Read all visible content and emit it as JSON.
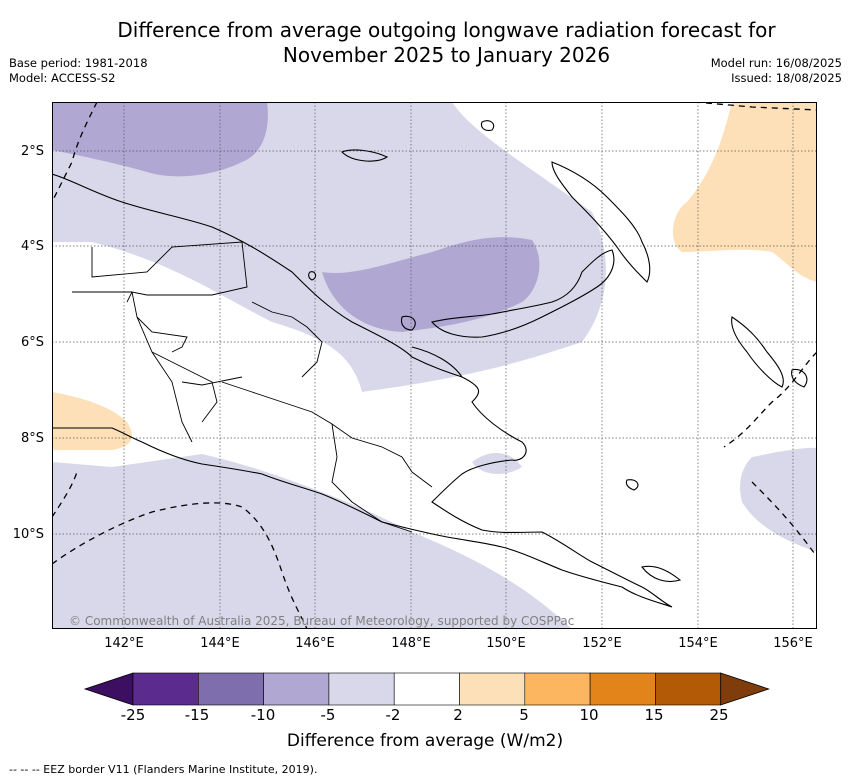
{
  "title": {
    "line1": "Difference from average outgoing longwave radiation forecast for",
    "line2": "November 2025 to January 2026"
  },
  "meta_left": {
    "base_period": "Base period: 1981-2018",
    "model": "Model: ACCESS-S2"
  },
  "meta_right": {
    "model_run": "Model run: 16/08/2025",
    "issued": "Issued: 18/08/2025"
  },
  "map": {
    "latitude_labels": [
      "2°S",
      "4°S",
      "6°S",
      "8°S",
      "10°S"
    ],
    "longitude_labels": [
      "142°E",
      "144°E",
      "146°E",
      "148°E",
      "150°E",
      "152°E",
      "154°E",
      "156°E"
    ],
    "copyright": "© Commonwealth of Australia 2025, Bureau of Meteorology, supported by COSPPac",
    "colors": {
      "anom_-10_-5": "#b0a8d2",
      "anom_-5_-2": "#d8d8ea",
      "anom_2_5": "#fde0b7",
      "land_outline": "#000000",
      "grid": "#555555"
    }
  },
  "colorbar": {
    "ticks": [
      "-25",
      "-15",
      "-10",
      "-5",
      "-2",
      "2",
      "5",
      "10",
      "15",
      "25"
    ],
    "colors": [
      "#3d0f60",
      "#5c2b8e",
      "#7f6ead",
      "#b0a8d2",
      "#d8d8ea",
      "#ffffff",
      "#fde0b7",
      "#fcb65f",
      "#e28419",
      "#b35a06",
      "#7e3d0b"
    ],
    "title": "Difference from average (W/m2)"
  },
  "footnote": "--  --  -- EEZ border V11 (Flanders Marine Institute, 2019)."
}
